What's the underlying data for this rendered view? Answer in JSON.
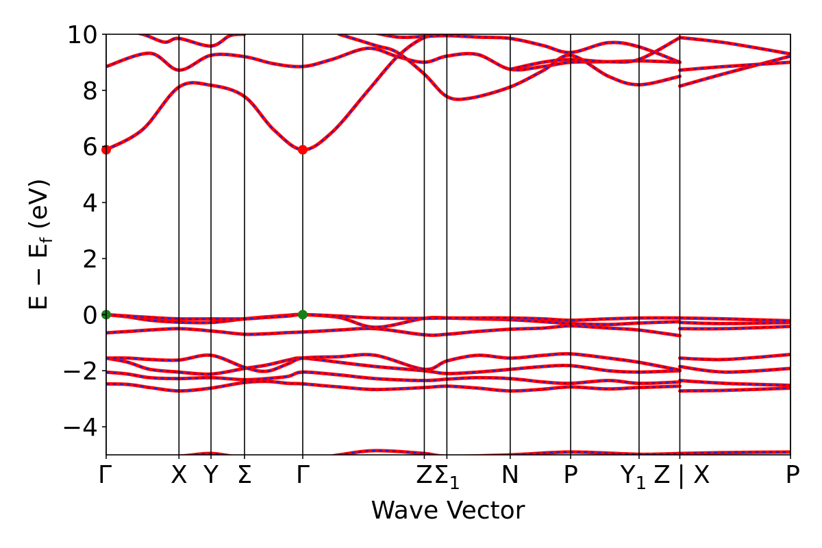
{
  "chart_data": {
    "type": "line",
    "title": "",
    "xlabel": "Wave Vector",
    "ylabel": "E − E",
    "ylabel_sub": "f",
    "ylabel_unit": " (eV)",
    "ylim": [
      -5,
      10
    ],
    "xlim": [
      0,
      9.4
    ],
    "grid": false,
    "y_ticks": [
      {
        "v": 10,
        "label": "10"
      },
      {
        "v": 8,
        "label": "8"
      },
      {
        "v": 6,
        "label": "6"
      },
      {
        "v": 4,
        "label": "4"
      },
      {
        "v": 2,
        "label": "2"
      },
      {
        "v": 0,
        "label": "0"
      },
      {
        "v": -2,
        "label": "−2"
      },
      {
        "v": -4,
        "label": "−4"
      }
    ],
    "kpoints": [
      {
        "x": 0.0,
        "label": "Γ",
        "sub": ""
      },
      {
        "x": 1.0,
        "label": "X",
        "sub": ""
      },
      {
        "x": 1.44,
        "label": "Y",
        "sub": ""
      },
      {
        "x": 1.9,
        "label": "Σ",
        "sub": ""
      },
      {
        "x": 2.7,
        "label": "Γ",
        "sub": ""
      },
      {
        "x": 4.37,
        "label": "Z",
        "sub": ""
      },
      {
        "x": 4.68,
        "label": "Σ",
        "sub": "1"
      },
      {
        "x": 5.55,
        "label": "N",
        "sub": ""
      },
      {
        "x": 6.38,
        "label": "P",
        "sub": ""
      },
      {
        "x": 7.32,
        "label": "Y",
        "sub": "1"
      },
      {
        "x": 7.88,
        "label": "Z",
        "sub": ""
      },
      {
        "x": 9.4,
        "label": "P",
        "sub": ""
      }
    ],
    "break_label": {
      "x": 7.88,
      "label": "| X"
    },
    "series_colors": {
      "dft": "#ff0000",
      "interp": "#1f1fd0"
    },
    "markers": [
      {
        "x": 0.0,
        "y": 5.88,
        "color": "#ff0000"
      },
      {
        "x": 2.7,
        "y": 5.88,
        "color": "#ff0000"
      },
      {
        "x": 0.0,
        "y": 0.0,
        "color": "#1a7f1a"
      },
      {
        "x": 2.7,
        "y": 0.0,
        "color": "#1a7f1a"
      }
    ],
    "bands": [
      {
        "x": [
          0,
          0.3,
          0.6,
          1.0,
          1.44,
          1.9,
          2.2,
          2.5,
          2.7,
          3.2,
          3.7,
          4.37,
          4.68,
          5.1,
          5.55,
          6.0,
          6.38,
          6.9,
          7.32,
          7.88
        ],
        "y": [
          -2.47,
          -2.49,
          -2.6,
          -2.72,
          -2.62,
          -2.42,
          -2.38,
          -2.45,
          -2.47,
          -2.58,
          -2.67,
          -2.6,
          -2.55,
          -2.62,
          -2.72,
          -2.66,
          -2.58,
          -2.65,
          -2.6,
          -2.55
        ]
      },
      {
        "x": [
          7.88,
          8.5,
          9.4
        ],
        "y": [
          -2.72,
          -2.7,
          -2.62
        ]
      },
      {
        "x": [
          0,
          0.3,
          0.6,
          1.0,
          1.44,
          1.9,
          2.2,
          2.5,
          2.7,
          3.2,
          3.7,
          4.37,
          4.68,
          5.1,
          5.55,
          6.0,
          6.38,
          6.9,
          7.32,
          7.88
        ],
        "y": [
          -2.05,
          -2.12,
          -2.25,
          -2.28,
          -2.25,
          -2.32,
          -2.28,
          -2.2,
          -2.05,
          -2.15,
          -2.28,
          -2.35,
          -2.3,
          -2.25,
          -2.28,
          -2.4,
          -2.45,
          -2.35,
          -2.45,
          -2.4
        ]
      },
      {
        "x": [
          7.88,
          8.5,
          9.4
        ],
        "y": [
          -2.35,
          -2.45,
          -2.52
        ]
      },
      {
        "x": [
          0,
          0.3,
          0.6,
          1.0,
          1.44,
          1.9,
          2.2,
          2.5,
          2.7,
          3.2,
          3.7,
          4.37,
          4.68,
          5.1,
          5.55,
          6.0,
          6.38,
          6.9,
          7.32,
          7.88
        ],
        "y": [
          -1.55,
          -1.7,
          -1.95,
          -2.05,
          -2.12,
          -1.92,
          -1.8,
          -1.62,
          -1.55,
          -1.7,
          -1.85,
          -2.0,
          -2.1,
          -2.05,
          -1.95,
          -1.85,
          -1.82,
          -2.0,
          -2.05,
          -2.0
        ]
      },
      {
        "x": [
          7.88,
          8.5,
          9.4
        ],
        "y": [
          -1.85,
          -2.05,
          -1.92
        ]
      },
      {
        "x": [
          0,
          0.3,
          0.6,
          1.0,
          1.44,
          1.9,
          2.2,
          2.5,
          2.7,
          3.2,
          3.7,
          4.37,
          4.68,
          5.1,
          5.55,
          6.0,
          6.38,
          6.9,
          7.32,
          7.88
        ],
        "y": [
          -1.55,
          -1.55,
          -1.6,
          -1.62,
          -1.45,
          -1.88,
          -2.02,
          -1.75,
          -1.55,
          -1.5,
          -1.45,
          -1.95,
          -1.65,
          -1.45,
          -1.55,
          -1.45,
          -1.4,
          -1.55,
          -1.7,
          -1.98
        ]
      },
      {
        "x": [
          7.88,
          8.5,
          9.4
        ],
        "y": [
          -1.55,
          -1.6,
          -1.42
        ]
      },
      {
        "x": [
          0,
          0.3,
          0.6,
          1.0,
          1.44,
          1.9,
          2.2,
          2.5,
          2.7,
          3.2,
          3.7,
          4.37,
          4.68,
          5.1,
          5.55,
          6.0,
          6.38,
          6.9,
          7.32,
          7.88
        ],
        "y": [
          -0.65,
          -0.6,
          -0.55,
          -0.5,
          -0.58,
          -0.7,
          -0.68,
          -0.64,
          -0.62,
          -0.55,
          -0.5,
          -0.72,
          -0.7,
          -0.6,
          -0.52,
          -0.48,
          -0.4,
          -0.48,
          -0.55,
          -0.75
        ]
      },
      {
        "x": [
          7.88,
          8.5,
          9.4
        ],
        "y": [
          -0.5,
          -0.5,
          -0.42
        ]
      },
      {
        "x": [
          0,
          0.3,
          0.6,
          1.0,
          1.44,
          1.9,
          2.2,
          2.5,
          2.7,
          3.2,
          3.7,
          4.37,
          4.68,
          5.1,
          5.55,
          6.0,
          6.38,
          6.9,
          7.32,
          7.88
        ],
        "y": [
          0.0,
          -0.08,
          -0.2,
          -0.27,
          -0.28,
          -0.15,
          -0.08,
          -0.02,
          0.0,
          -0.1,
          -0.45,
          -0.13,
          -0.12,
          -0.15,
          -0.18,
          -0.25,
          -0.32,
          -0.35,
          -0.3,
          -0.25
        ]
      },
      {
        "x": [
          7.88,
          8.5,
          9.4
        ],
        "y": [
          -0.28,
          -0.32,
          -0.28
        ]
      },
      {
        "x": [
          0,
          0.3,
          0.6,
          1.0,
          1.44,
          1.9,
          2.2,
          2.5,
          2.7,
          3.2,
          3.7,
          4.37,
          4.68,
          5.1,
          5.55,
          6.0,
          6.38,
          6.9,
          7.32,
          7.88
        ],
        "y": [
          0.0,
          -0.05,
          -0.1,
          -0.15,
          -0.15,
          -0.15,
          -0.1,
          -0.05,
          0.0,
          -0.05,
          -0.12,
          -0.13,
          -0.12,
          -0.12,
          -0.12,
          -0.15,
          -0.2,
          -0.15,
          -0.12,
          -0.12
        ]
      },
      {
        "x": [
          7.88,
          8.5,
          9.4
        ],
        "y": [
          -0.12,
          -0.15,
          -0.22
        ]
      },
      {
        "x": [
          0,
          0.5,
          1.0,
          1.44,
          1.9,
          2.3,
          2.7,
          3.1,
          3.6,
          4.0,
          4.37,
          4.68
        ],
        "y": [
          5.88,
          6.6,
          8.12,
          8.18,
          7.78,
          6.6,
          5.88,
          6.5,
          8.0,
          9.2,
          9.88,
          9.95
        ]
      },
      {
        "x": [
          0,
          0.6,
          1.0,
          1.44,
          1.9,
          2.3,
          2.7,
          3.1,
          3.6,
          4.0,
          4.37,
          4.68,
          5.1,
          5.55,
          6.0,
          6.38,
          6.9,
          7.32,
          7.88
        ],
        "y": [
          8.85,
          9.32,
          8.72,
          9.25,
          9.2,
          8.95,
          8.85,
          9.1,
          9.5,
          9.2,
          9.0,
          9.22,
          9.28,
          8.75,
          8.85,
          9.0,
          9.02,
          9.05,
          9.0
        ]
      },
      {
        "x": [
          0,
          0.5,
          0.8,
          1.0,
          1.44,
          1.7,
          1.9
        ],
        "y": [
          10.3,
          10.0,
          9.72,
          9.85,
          9.58,
          9.95,
          10.0
        ]
      },
      {
        "x": [
          3.2,
          3.7,
          4.0,
          4.37,
          4.68,
          5.0,
          5.55,
          6.0,
          6.38,
          6.9,
          7.32,
          7.88
        ],
        "y": [
          10.0,
          9.6,
          9.35,
          8.58,
          7.78,
          7.72,
          8.12,
          8.7,
          9.25,
          8.5,
          8.2,
          8.5
        ]
      },
      {
        "x": [
          3.6,
          4.0,
          4.37,
          4.68,
          5.1,
          5.55,
          6.0,
          6.38,
          6.9,
          7.32,
          7.88
        ],
        "y": [
          10.1,
          9.9,
          9.92,
          9.95,
          9.9,
          9.85,
          9.6,
          9.35,
          9.7,
          9.55,
          9.0
        ]
      },
      {
        "x": [
          5.55,
          6.0,
          6.38,
          6.9,
          7.32,
          7.88
        ],
        "y": [
          8.75,
          9.0,
          9.1,
          9.02,
          9.1,
          9.88
        ]
      },
      {
        "x": [
          7.88,
          8.5,
          9.4
        ],
        "y": [
          8.15,
          8.6,
          9.22
        ]
      },
      {
        "x": [
          7.88,
          8.5,
          9.4
        ],
        "y": [
          8.72,
          8.85,
          9.0
        ]
      },
      {
        "x": [
          7.88,
          8.5,
          9.4
        ],
        "y": [
          9.88,
          9.7,
          9.3
        ]
      },
      {
        "x": [
          0,
          1.0,
          1.44,
          1.9,
          2.7,
          3.2,
          3.7,
          4.37,
          4.68,
          5.55,
          6.38,
          7.32,
          7.88
        ],
        "y": [
          -5.2,
          -5.05,
          -4.95,
          -5.1,
          -5.2,
          -5.0,
          -4.85,
          -4.95,
          -5.05,
          -5.0,
          -4.9,
          -4.98,
          -4.95
        ]
      },
      {
        "x": [
          7.88,
          8.5,
          9.4
        ],
        "y": [
          -4.95,
          -4.92,
          -4.9
        ]
      }
    ]
  }
}
